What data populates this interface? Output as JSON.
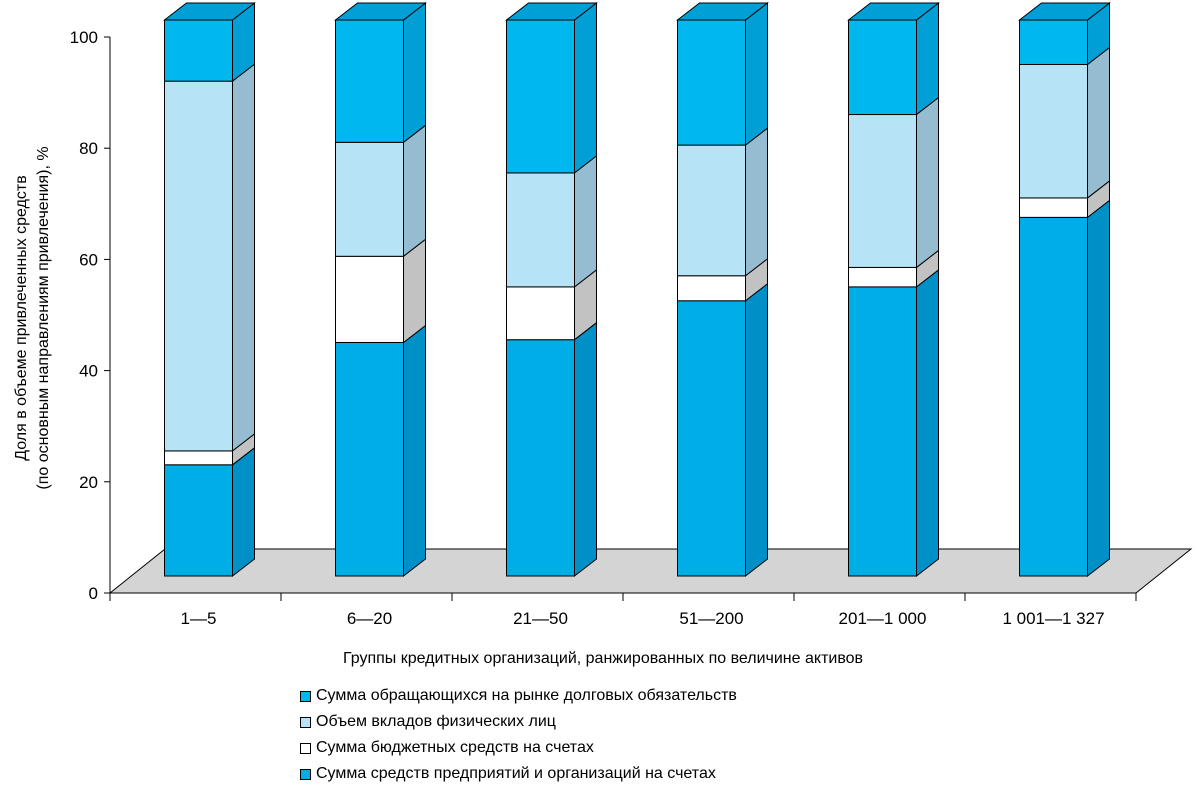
{
  "chart_data": {
    "type": "bar",
    "stacked": true,
    "title": "",
    "xlabel": "Группы кредитных организаций, ранжированных по величине активов",
    "ylabel": [
      "Доля в  объеме привлеченных средств",
      "(по основным направлениям привлечения), %"
    ],
    "ylim": [
      0,
      100
    ],
    "yticks": [
      0,
      20,
      40,
      60,
      80,
      100
    ],
    "categories": [
      "1—5",
      "6—20",
      "21—50",
      "51—200",
      "201—1 000",
      "1 001—1 327"
    ],
    "series": [
      {
        "name": "Сумма средств предприятий и организаций на счетах",
        "values": [
          20,
          42,
          42.5,
          49.5,
          52,
          64.5
        ]
      },
      {
        "name": "Сумма бюджетных средств на счетах",
        "values": [
          2.5,
          15.5,
          9.5,
          4.5,
          3.5,
          3.5
        ]
      },
      {
        "name": "Объем вкладов физических лиц",
        "values": [
          66.5,
          20.5,
          20.5,
          23.5,
          27.5,
          24
        ]
      },
      {
        "name": "Сумма обращающихся на рынке долговых обязательств",
        "values": [
          11,
          22,
          27.5,
          22.5,
          17,
          8
        ]
      }
    ],
    "legend_order": [
      3,
      2,
      1,
      0
    ],
    "colors": {
      "front": [
        "#00aee7",
        "#ffffff",
        "#b6e3f5",
        "#00b8ee"
      ],
      "side": [
        "#0090c8",
        "#c2c2c2",
        "#95bcd0",
        "#009fd6"
      ],
      "floor": "#d4d4d4"
    },
    "grid": false,
    "legend_position": "bottom"
  }
}
